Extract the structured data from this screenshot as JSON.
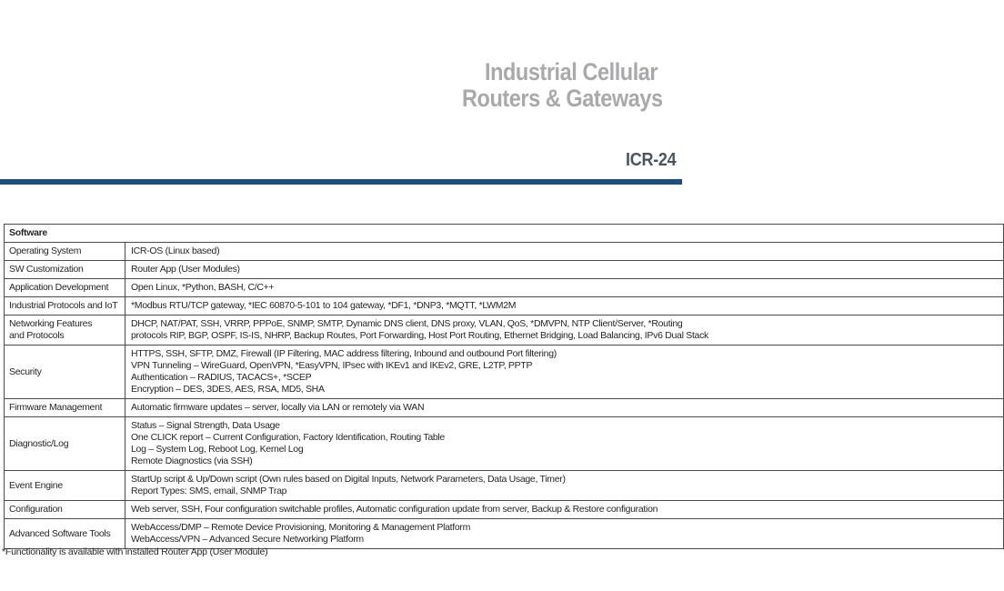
{
  "page": {
    "title_line1": "Industrial Cellular",
    "title_line2": "Routers & Gateways",
    "model": "ICR-24",
    "colors": {
      "title_gray": "#a7a9ac",
      "model_slate": "#4b5562",
      "accent_rule_blue": "#1a4f80",
      "table_border": "#4a4a4a"
    }
  },
  "table": {
    "section_title": "Software",
    "rows": [
      {
        "label": "Operating System",
        "value": "ICR-OS (Linux based)"
      },
      {
        "label": "SW Customization",
        "value": "Router App (User Modules)"
      },
      {
        "label": "Application Development",
        "value": "Open Linux, *Python, BASH, C/C++"
      },
      {
        "label": "Industrial Protocols and IoT",
        "value": "*Modbus RTU/TCP gateway, *IEC 60870-5-101 to 104 gateway, *DF1, *DNP3, *MQTT, *LWM2M"
      },
      {
        "label": "Networking Features\nand Protocols",
        "value": "DHCP, NAT/PAT, SSH, VRRP, PPPoE, SNMP, SMTP, Dynamic DNS client, DNS proxy, VLAN, QoS, *DMVPN, NTP Client/Server, *Routing\nprotocols RIP, BGP, OSPF, IS-IS, NHRP, Backup Routes, Port Forwarding, Host Port Routing, Ethernet Bridging, Load Balancing, IPv6 Dual Stack"
      },
      {
        "label": "Security",
        "value": "HTTPS, SSH, SFTP, DMZ, Firewall (IP Filtering, MAC address filtering, Inbound and outbound Port filtering)\nVPN Tunneling – WireGuard, OpenVPN, *EasyVPN, IPsec with IKEv1 and IKEv2, GRE, L2TP, PPTP\nAuthentication – RADIUS, TACACS+, *SCEP\nEncryption – DES, 3DES, AES, RSA, MD5, SHA"
      },
      {
        "label": "Firmware Management",
        "value": "Automatic firmware updates – server, locally via LAN or remotely via WAN"
      },
      {
        "label": "Diagnostic/Log",
        "value": "Status – Signal Strength, Data Usage\nOne CLICK report – Current Configuration, Factory Identification, Routing Table\nLog – System Log, Reboot Log, Kernel Log\nRemote Diagnostics (via SSH)"
      },
      {
        "label": "Event Engine",
        "value": "StartUp script & Up/Down script (Own rules based on Digital Inputs, Network Parameters, Data Usage, Timer)\nReport Types: SMS, email, SNMP Trap"
      },
      {
        "label": "Configuration",
        "value": "Web server, SSH, Four configuration switchable profiles, Automatic configuration update from server, Backup & Restore configuration"
      },
      {
        "label": "Advanced Software Tools",
        "value": "WebAccess/DMP – Remote Device Provisioning, Monitoring & Management Platform\nWebAccess/VPN – Advanced Secure Networking Platform"
      }
    ]
  },
  "footnote": "*Functionality is available with installed Router App (User Module)"
}
